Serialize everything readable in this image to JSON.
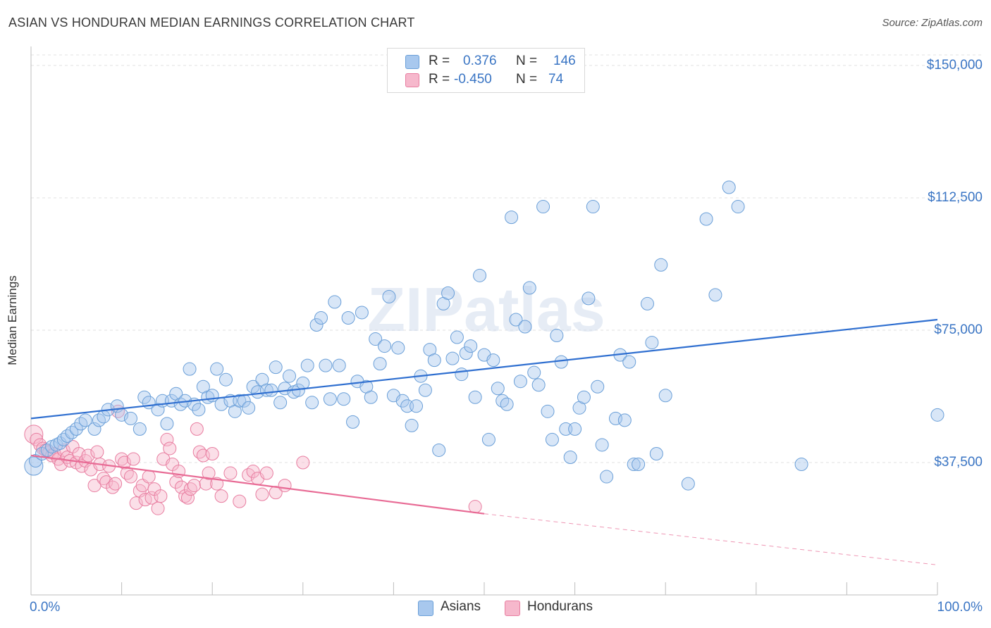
{
  "title": "ASIAN VS HONDURAN MEDIAN EARNINGS CORRELATION CHART",
  "source": "Source: ZipAtlas.com",
  "watermark": "ZIPatlas",
  "legend": {
    "rows": [
      {
        "r_label": "R =",
        "r_value": "0.376",
        "n_label": "N =",
        "n_value": "146",
        "color": "#a8c8ee",
        "stroke": "#6a9fd8"
      },
      {
        "r_label": "R =",
        "r_value": "-0.450",
        "n_label": "N =",
        "n_value": "74",
        "color": "#f6b8cc",
        "stroke": "#e87da0"
      }
    ]
  },
  "bottom_legend": [
    {
      "label": "Asians",
      "color": "#a8c8ee",
      "stroke": "#6a9fd8"
    },
    {
      "label": "Hondurans",
      "color": "#f6b8cc",
      "stroke": "#e87da0"
    }
  ],
  "chart_data": {
    "type": "scatter",
    "title": "ASIAN VS HONDURAN MEDIAN EARNINGS CORRELATION CHART",
    "xlabel": "",
    "ylabel": "Median Earnings",
    "xlim": [
      0,
      100
    ],
    "ylim": [
      0,
      153000
    ],
    "x_tick_labels": [
      "0.0%",
      "100.0%"
    ],
    "y_ticks": [
      37500,
      75000,
      112500,
      150000
    ],
    "y_tick_labels": [
      "$37,500",
      "$75,000",
      "$112,500",
      "$150,000"
    ],
    "grid": "horizontal dashed",
    "legend_position": "top-center",
    "series": [
      {
        "name": "Asians",
        "color": "#a8c8ee",
        "stroke": "#6a9fd8",
        "r": 0.376,
        "n": 146,
        "trend": {
          "x0": 0,
          "y0": 50000,
          "x1": 100,
          "y1": 78000,
          "color": "#2f6fd0"
        },
        "points": [
          [
            0.3,
            36500
          ],
          [
            0.5,
            38000
          ],
          [
            1.2,
            40000
          ],
          [
            1.8,
            41000
          ],
          [
            2.3,
            42000
          ],
          [
            2.8,
            42500
          ],
          [
            3.2,
            43000
          ],
          [
            3.6,
            44000
          ],
          [
            4.0,
            45000
          ],
          [
            4.5,
            46000
          ],
          [
            5.0,
            47000
          ],
          [
            5.5,
            48500
          ],
          [
            6.0,
            49500
          ],
          [
            7.0,
            47000
          ],
          [
            7.5,
            49500
          ],
          [
            8.0,
            50500
          ],
          [
            8.5,
            52500
          ],
          [
            9.5,
            53500
          ],
          [
            10.0,
            51000
          ],
          [
            11.0,
            50000
          ],
          [
            12.0,
            47000
          ],
          [
            12.5,
            56000
          ],
          [
            13.0,
            54500
          ],
          [
            14.0,
            52500
          ],
          [
            14.5,
            55000
          ],
          [
            15.0,
            48500
          ],
          [
            15.5,
            55000
          ],
          [
            16.0,
            57000
          ],
          [
            16.5,
            54000
          ],
          [
            17.0,
            55000
          ],
          [
            17.5,
            64000
          ],
          [
            18.0,
            54000
          ],
          [
            18.5,
            52500
          ],
          [
            19.0,
            59000
          ],
          [
            19.5,
            56000
          ],
          [
            20.0,
            56500
          ],
          [
            20.5,
            64000
          ],
          [
            21.0,
            54000
          ],
          [
            21.5,
            61000
          ],
          [
            22.0,
            55000
          ],
          [
            22.5,
            52000
          ],
          [
            23.0,
            55000
          ],
          [
            23.5,
            55000
          ],
          [
            24.0,
            53000
          ],
          [
            24.5,
            59000
          ],
          [
            25.0,
            57500
          ],
          [
            25.5,
            61000
          ],
          [
            26.0,
            58000
          ],
          [
            26.5,
            58000
          ],
          [
            27.0,
            64500
          ],
          [
            27.5,
            54500
          ],
          [
            28.0,
            58500
          ],
          [
            28.5,
            62000
          ],
          [
            29.0,
            57500
          ],
          [
            29.5,
            58000
          ],
          [
            30.0,
            60000
          ],
          [
            30.5,
            65000
          ],
          [
            31.0,
            54500
          ],
          [
            31.5,
            76500
          ],
          [
            32.0,
            78500
          ],
          [
            32.5,
            65000
          ],
          [
            33.0,
            55500
          ],
          [
            33.5,
            83000
          ],
          [
            34.0,
            65000
          ],
          [
            34.5,
            55500
          ],
          [
            35.0,
            78500
          ],
          [
            35.5,
            49000
          ],
          [
            36.0,
            60500
          ],
          [
            36.5,
            80000
          ],
          [
            37.0,
            59000
          ],
          [
            37.5,
            56000
          ],
          [
            38.0,
            72500
          ],
          [
            38.5,
            65500
          ],
          [
            39.0,
            70500
          ],
          [
            39.5,
            84500
          ],
          [
            40.0,
            56500
          ],
          [
            40.5,
            70000
          ],
          [
            41.0,
            55000
          ],
          [
            41.5,
            53500
          ],
          [
            42.0,
            48000
          ],
          [
            42.5,
            53500
          ],
          [
            43.0,
            62000
          ],
          [
            43.5,
            58000
          ],
          [
            44.0,
            69500
          ],
          [
            44.5,
            66500
          ],
          [
            45.0,
            41000
          ],
          [
            45.5,
            82500
          ],
          [
            46.0,
            85500
          ],
          [
            46.5,
            67000
          ],
          [
            47.0,
            73000
          ],
          [
            47.5,
            62500
          ],
          [
            48.0,
            68500
          ],
          [
            48.5,
            70500
          ],
          [
            49.0,
            56000
          ],
          [
            49.5,
            90500
          ],
          [
            50.0,
            68000
          ],
          [
            50.5,
            44000
          ],
          [
            51.0,
            66500
          ],
          [
            51.5,
            58500
          ],
          [
            52.0,
            55000
          ],
          [
            52.5,
            54000
          ],
          [
            53.0,
            107000
          ],
          [
            53.5,
            78000
          ],
          [
            54.0,
            60500
          ],
          [
            54.5,
            76000
          ],
          [
            55.0,
            87000
          ],
          [
            55.5,
            63000
          ],
          [
            56.0,
            59500
          ],
          [
            56.5,
            110000
          ],
          [
            57.0,
            52000
          ],
          [
            57.5,
            44000
          ],
          [
            58.0,
            73500
          ],
          [
            58.5,
            66000
          ],
          [
            59.0,
            47000
          ],
          [
            59.5,
            39000
          ],
          [
            60.0,
            47000
          ],
          [
            60.5,
            53000
          ],
          [
            61.0,
            56000
          ],
          [
            61.5,
            84000
          ],
          [
            62.0,
            110000
          ],
          [
            62.5,
            59000
          ],
          [
            63.0,
            42500
          ],
          [
            63.5,
            33500
          ],
          [
            64.5,
            50000
          ],
          [
            65.0,
            68000
          ],
          [
            65.5,
            49500
          ],
          [
            66.0,
            66000
          ],
          [
            66.5,
            37000
          ],
          [
            67.0,
            37000
          ],
          [
            68.0,
            82500
          ],
          [
            68.5,
            71500
          ],
          [
            69.0,
            40000
          ],
          [
            69.5,
            93500
          ],
          [
            70.0,
            56500
          ],
          [
            72.5,
            31500
          ],
          [
            74.5,
            106500
          ],
          [
            75.5,
            85000
          ],
          [
            77.0,
            115500
          ],
          [
            78.0,
            110000
          ],
          [
            85.0,
            37000
          ],
          [
            100.0,
            51000
          ]
        ]
      },
      {
        "name": "Hondurans",
        "color": "#f6b8cc",
        "stroke": "#e87da0",
        "r": -0.45,
        "n": 74,
        "trend": {
          "x0": 0,
          "y0": 39500,
          "x1": 50,
          "y1": 23000,
          "color": "#e86b95",
          "dashed_to": {
            "x": 100,
            "y": 8500
          }
        },
        "points": [
          [
            0.3,
            45500
          ],
          [
            0.6,
            44000
          ],
          [
            1.0,
            42500
          ],
          [
            1.3,
            41500
          ],
          [
            1.6,
            41000
          ],
          [
            2.0,
            40500
          ],
          [
            2.3,
            39500
          ],
          [
            2.6,
            40000
          ],
          [
            3.0,
            38500
          ],
          [
            3.3,
            37000
          ],
          [
            3.6,
            41000
          ],
          [
            4.0,
            39000
          ],
          [
            4.3,
            38000
          ],
          [
            4.6,
            42000
          ],
          [
            5.0,
            37500
          ],
          [
            5.3,
            40000
          ],
          [
            5.6,
            36500
          ],
          [
            6.0,
            38000
          ],
          [
            6.3,
            39500
          ],
          [
            6.6,
            35500
          ],
          [
            7.0,
            31000
          ],
          [
            7.3,
            40500
          ],
          [
            7.6,
            37000
          ],
          [
            8.0,
            33000
          ],
          [
            8.3,
            32000
          ],
          [
            8.6,
            36500
          ],
          [
            9.0,
            30500
          ],
          [
            9.3,
            31500
          ],
          [
            9.6,
            52000
          ],
          [
            10.0,
            38500
          ],
          [
            10.3,
            37500
          ],
          [
            10.6,
            34500
          ],
          [
            11.0,
            33500
          ],
          [
            11.3,
            38500
          ],
          [
            11.6,
            26000
          ],
          [
            12.0,
            29500
          ],
          [
            12.3,
            31000
          ],
          [
            12.6,
            27000
          ],
          [
            13.0,
            33500
          ],
          [
            13.3,
            27500
          ],
          [
            13.6,
            30000
          ],
          [
            14.0,
            24500
          ],
          [
            14.3,
            28000
          ],
          [
            14.6,
            38500
          ],
          [
            15.0,
            44000
          ],
          [
            15.3,
            41500
          ],
          [
            15.6,
            37000
          ],
          [
            16.0,
            32000
          ],
          [
            16.3,
            35000
          ],
          [
            16.6,
            30500
          ],
          [
            17.0,
            28000
          ],
          [
            17.3,
            27500
          ],
          [
            17.6,
            30000
          ],
          [
            18.0,
            31000
          ],
          [
            18.3,
            47000
          ],
          [
            18.6,
            40500
          ],
          [
            19.0,
            39500
          ],
          [
            19.3,
            31500
          ],
          [
            19.6,
            34500
          ],
          [
            20.0,
            40000
          ],
          [
            20.5,
            31500
          ],
          [
            21.0,
            28000
          ],
          [
            22.0,
            34500
          ],
          [
            23.0,
            26500
          ],
          [
            24.0,
            34000
          ],
          [
            24.5,
            35000
          ],
          [
            25.0,
            33000
          ],
          [
            25.5,
            28500
          ],
          [
            26.0,
            34500
          ],
          [
            27.0,
            29000
          ],
          [
            28.0,
            31000
          ],
          [
            30.0,
            37500
          ],
          [
            49.0,
            25000
          ]
        ]
      }
    ]
  }
}
